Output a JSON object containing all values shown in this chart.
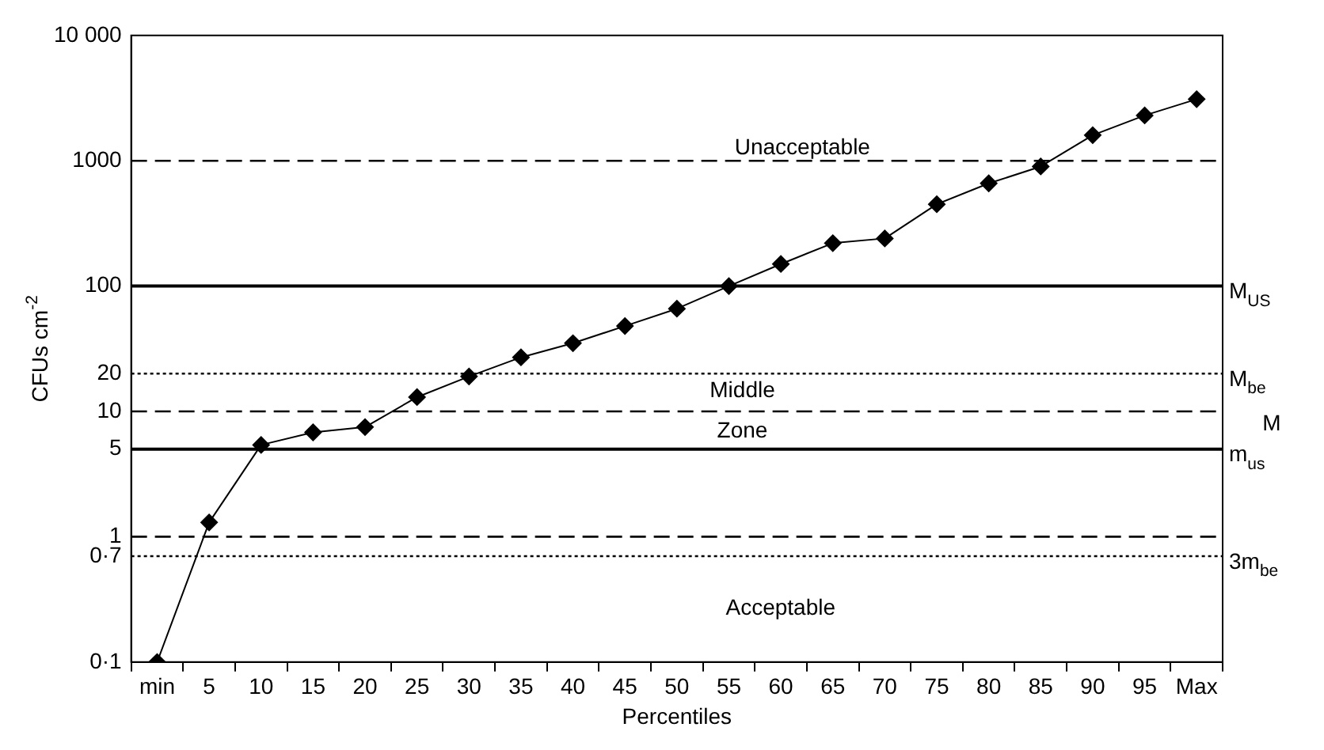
{
  "chart_data": {
    "type": "line",
    "xlabel": "Percentiles",
    "ylabel": "CFUs cm$^{-2}$",
    "categories": [
      "min",
      "5",
      "10",
      "15",
      "20",
      "25",
      "30",
      "35",
      "40",
      "45",
      "50",
      "55",
      "60",
      "65",
      "70",
      "75",
      "80",
      "85",
      "90",
      "95",
      "Max"
    ],
    "series": [
      {
        "color": "#000000",
        "values": [
          0.1,
          1.3,
          5.4,
          6.8,
          7.5,
          13,
          19,
          27,
          35,
          48,
          66,
          100,
          150,
          220,
          240,
          450,
          660,
          900,
          1600,
          2300,
          3100
        ]
      }
    ],
    "log": "y",
    "ylim": [
      0.1,
      10000
    ],
    "yticks": [
      {
        "value": 0.1,
        "label": "0·1"
      },
      {
        "value": 0.7,
        "label": "0·7"
      },
      1,
      5,
      10,
      20,
      100,
      1000,
      {
        "value": 10000,
        "label": "10 000"
      }
    ],
    "marker": "diamond",
    "line_style": "solid",
    "grid": false,
    "legend": false,
    "ref_lines": [
      {
        "axis": "y",
        "value": 1000,
        "color": "#000000",
        "line_style": "dashed"
      },
      {
        "axis": "y",
        "value": 100,
        "label": "M$_{US}$",
        "color": "#000000",
        "line_style": "solid"
      },
      {
        "axis": "y",
        "value": 20,
        "label": "M$_{be}$",
        "color": "#000000",
        "line_style": "dotted"
      },
      {
        "axis": "y",
        "value": 10,
        "color": "#000000",
        "line_style": "dashed"
      },
      {
        "axis": "y",
        "value": 5,
        "label": "m$_{us}$",
        "color": "#000000",
        "line_style": "solid"
      },
      {
        "axis": "y",
        "value": 1,
        "color": "#000000",
        "line_style": "dashed"
      },
      {
        "axis": "y",
        "value": 0.7,
        "label": "3m$_{be}$",
        "color": "#000000",
        "line_style": "dotted"
      }
    ],
    "annotations": [
      "Unacceptable",
      "Middle",
      "Zone",
      "Acceptable",
      "M"
    ]
  }
}
